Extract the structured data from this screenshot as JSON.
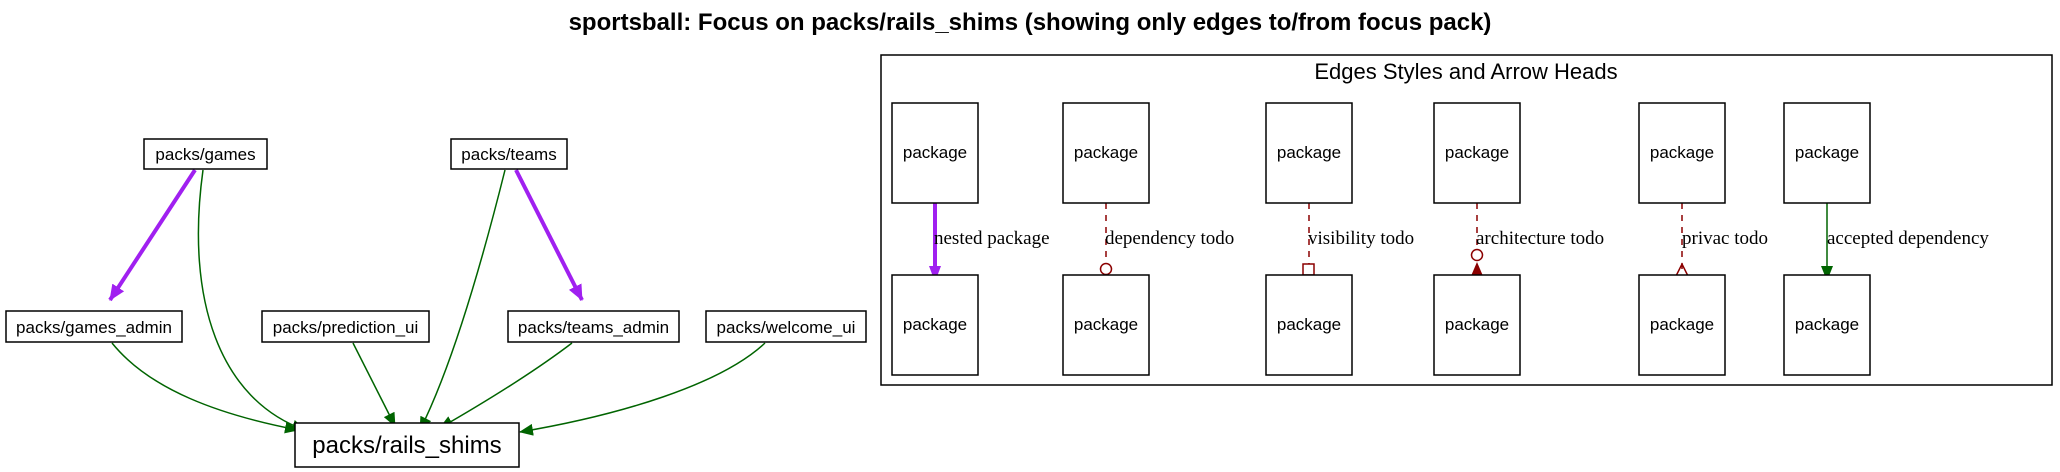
{
  "title": "sportsball: Focus on packs/rails_shims (showing only edges to/from focus pack)",
  "nodes": {
    "games": "packs/games",
    "teams": "packs/teams",
    "games_admin": "packs/games_admin",
    "prediction_ui": "packs/prediction_ui",
    "teams_admin": "packs/teams_admin",
    "welcome_ui": "packs/welcome_ui",
    "rails_shims": "packs/rails_shims"
  },
  "legend": {
    "title": "Edges Styles and Arrow Heads",
    "package_label": "package",
    "edges": {
      "nested": "nested package",
      "dependency_todo": "dependency todo",
      "visibility_todo": "visibility todo",
      "architecture_todo": "architecture todo",
      "privacy_todo": "privac todo",
      "accepted": "accepted dependency"
    }
  },
  "colors": {
    "nested_edge": "#a020f0",
    "accepted_edge": "#006400",
    "todo_edge": "#8b0000",
    "node_border": "#000000"
  }
}
